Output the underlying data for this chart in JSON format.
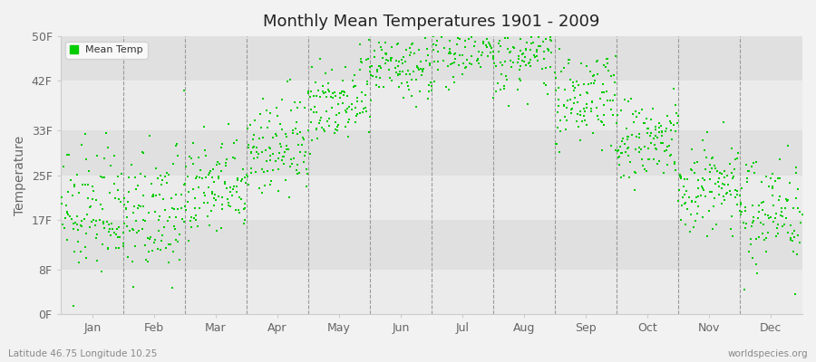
{
  "title": "Monthly Mean Temperatures 1901 - 2009",
  "ylabel": "Temperature",
  "dot_color": "#00cc00",
  "background_color": "#f2f2f2",
  "plot_bg_light": "#ebebeb",
  "plot_bg_dark": "#e0e0e0",
  "yticks": [
    0,
    8,
    17,
    25,
    33,
    42,
    50
  ],
  "ytick_labels": [
    "0F",
    "8F",
    "17F",
    "25F",
    "33F",
    "42F",
    "50F"
  ],
  "months": [
    "Jan",
    "Feb",
    "Mar",
    "Apr",
    "May",
    "Jun",
    "Jul",
    "Aug",
    "Sep",
    "Oct",
    "Nov",
    "Dec"
  ],
  "mean_temps_f": [
    17.5,
    17.0,
    21.5,
    29.0,
    38.0,
    44.5,
    47.5,
    46.0,
    38.0,
    30.0,
    22.0,
    18.0
  ],
  "std_temps_f": [
    5.5,
    5.5,
    4.5,
    4.5,
    4.0,
    3.5,
    3.0,
    3.5,
    4.0,
    4.0,
    4.5,
    5.0
  ],
  "trend_f_per_century": [
    1.5,
    1.5,
    1.5,
    1.5,
    1.5,
    1.5,
    1.5,
    1.5,
    1.5,
    1.5,
    1.5,
    1.5
  ],
  "n_years": 109,
  "seed": 12345,
  "subtitle_left": "Latitude 46.75 Longitude 10.25",
  "subtitle_right": "worldspecies.org",
  "legend_label": "Mean Temp",
  "ylim": [
    0,
    50
  ],
  "marker_size": 3
}
